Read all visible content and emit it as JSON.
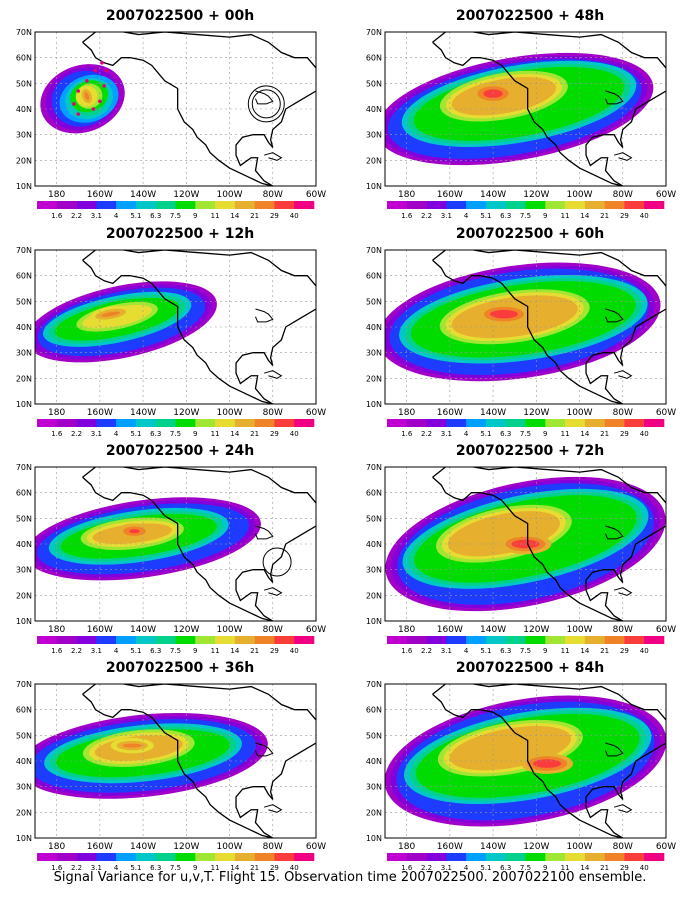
{
  "figure": {
    "caption": "Signal Variance for u,v,T. Flight 15. Observation time 2007022500. 2007022100 ensemble.",
    "lat_ticks": [
      "70N",
      "60N",
      "50N",
      "40N",
      "30N",
      "20N",
      "10N"
    ],
    "lon_ticks": [
      "180",
      "160W",
      "140W",
      "120W",
      "100W",
      "80W",
      "60W"
    ],
    "colorbar": {
      "labels": [
        "1.6",
        "2.2",
        "3.1",
        "4",
        "5.1",
        "6.3",
        "7.5",
        "9",
        "11",
        "14",
        "21",
        "29",
        "40"
      ],
      "colors": [
        "#a000c8",
        "#8200dc",
        "#1e3cff",
        "#00a0ff",
        "#00c8c8",
        "#00d28c",
        "#00dc00",
        "#a0e632",
        "#e6dc32",
        "#e6af2d",
        "#f08228",
        "#fa3c3c",
        "#f00082"
      ]
    }
  },
  "panels": [
    {
      "title": "2007022500 + 00h"
    },
    {
      "title": "2007022500 + 48h"
    },
    {
      "title": "2007022500 + 12h"
    },
    {
      "title": "2007022500 + 60h"
    },
    {
      "title": "2007022500 + 24h"
    },
    {
      "title": "2007022500 + 72h"
    },
    {
      "title": "2007022500 + 36h"
    },
    {
      "title": "2007022500 + 84h"
    }
  ]
}
